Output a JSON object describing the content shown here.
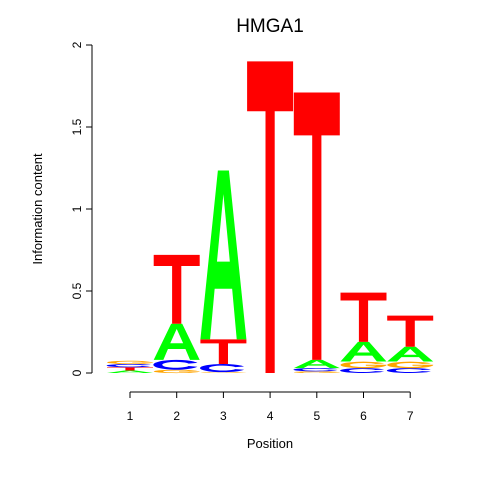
{
  "chart_data": {
    "type": "sequence-logo",
    "title": "HMGA1",
    "xlabel": "Position",
    "ylabel": "Information content",
    "ylim": [
      0,
      2
    ],
    "yticks": [
      0,
      0.5,
      1,
      1.5,
      2
    ],
    "ytick_labels": [
      "0",
      "0.5",
      "1",
      "1.5",
      "2"
    ],
    "positions": [
      "1",
      "2",
      "3",
      "4",
      "5",
      "6",
      "7"
    ],
    "colors": {
      "A": "#00ff00",
      "C": "#0000ff",
      "G": "#ffa500",
      "T": "#ff0000"
    },
    "stacks": [
      [
        {
          "letter": "A",
          "height": 0.015
        },
        {
          "letter": "T",
          "height": 0.02
        },
        {
          "letter": "C",
          "height": 0.02
        },
        {
          "letter": "G",
          "height": 0.02
        }
      ],
      [
        {
          "letter": "G",
          "height": 0.02
        },
        {
          "letter": "C",
          "height": 0.06
        },
        {
          "letter": "A",
          "height": 0.22
        },
        {
          "letter": "T",
          "height": 0.42
        }
      ],
      [
        {
          "letter": "G",
          "height": 0.005
        },
        {
          "letter": "C",
          "height": 0.05
        },
        {
          "letter": "T",
          "height": 0.15
        },
        {
          "letter": "A",
          "height": 1.03
        }
      ],
      [
        {
          "letter": "T",
          "height": 1.9
        }
      ],
      [
        {
          "letter": "G",
          "height": 0.01
        },
        {
          "letter": "C",
          "height": 0.02
        },
        {
          "letter": "A",
          "height": 0.05
        },
        {
          "letter": "T",
          "height": 1.63
        }
      ],
      [
        {
          "letter": "C",
          "height": 0.03
        },
        {
          "letter": "G",
          "height": 0.04
        },
        {
          "letter": "A",
          "height": 0.12
        },
        {
          "letter": "T",
          "height": 0.3
        }
      ],
      [
        {
          "letter": "C",
          "height": 0.03
        },
        {
          "letter": "G",
          "height": 0.04
        },
        {
          "letter": "A",
          "height": 0.09
        },
        {
          "letter": "T",
          "height": 0.19
        }
      ]
    ]
  }
}
